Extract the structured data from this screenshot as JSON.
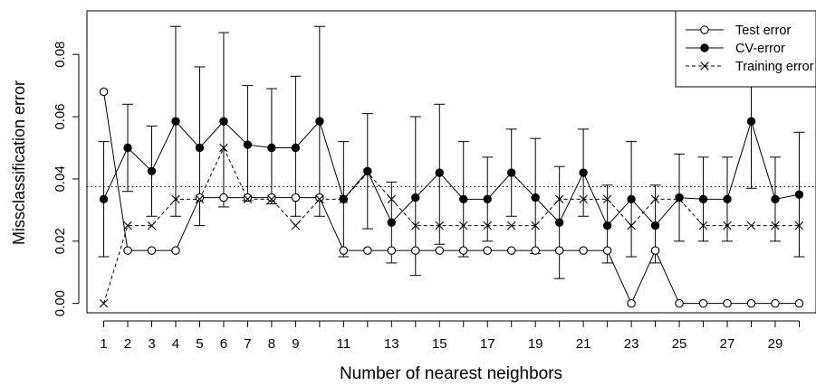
{
  "chart_data": {
    "type": "line",
    "title": "",
    "xlabel": "Number of nearest neighbors",
    "ylabel": "Missclassification error",
    "xlim": [
      0.3,
      30.7
    ],
    "ylim": [
      -0.003,
      0.094
    ],
    "x_ticks": [
      1,
      2,
      3,
      4,
      5,
      6,
      7,
      8,
      9,
      11,
      13,
      15,
      17,
      19,
      21,
      23,
      25,
      27,
      29
    ],
    "y_ticks": [
      0.0,
      0.02,
      0.04,
      0.06,
      0.08
    ],
    "y_tick_labels": [
      "0.00",
      "0.02",
      "0.04",
      "0.06",
      "0.08"
    ],
    "grid": false,
    "legend_position": "top-right",
    "reference_line": {
      "y": 0.0375,
      "style": "dotted"
    },
    "x": [
      1,
      2,
      3,
      4,
      5,
      6,
      7,
      8,
      9,
      10,
      11,
      12,
      13,
      14,
      15,
      16,
      17,
      18,
      19,
      20,
      21,
      22,
      23,
      24,
      25,
      26,
      27,
      28,
      29,
      30
    ],
    "series": [
      {
        "name": "Test error",
        "marker": "open-circle",
        "line": "solid",
        "values": [
          0.068,
          0.017,
          0.017,
          0.017,
          0.034,
          0.034,
          0.034,
          0.034,
          0.034,
          0.034,
          0.017,
          0.017,
          0.017,
          0.017,
          0.017,
          0.017,
          0.017,
          0.017,
          0.017,
          0.017,
          0.017,
          0.017,
          0.0,
          0.017,
          0.0,
          0.0,
          0.0,
          0.0,
          0.0,
          0.0
        ]
      },
      {
        "name": "CV-error",
        "marker": "filled-circle",
        "line": "solid",
        "values": [
          0.0335,
          0.05,
          0.0425,
          0.0585,
          0.05,
          0.0585,
          0.051,
          0.05,
          0.05,
          0.0585,
          0.0335,
          0.0425,
          0.026,
          0.034,
          0.042,
          0.0335,
          0.0335,
          0.042,
          0.034,
          0.026,
          0.042,
          0.025,
          0.0335,
          0.025,
          0.034,
          0.0335,
          0.0335,
          0.0585,
          0.0335,
          0.035
        ],
        "error_low": [
          0.015,
          0.036,
          0.028,
          0.028,
          0.025,
          0.031,
          0.033,
          0.032,
          0.028,
          0.028,
          0.015,
          0.024,
          0.013,
          0.009,
          0.019,
          0.015,
          0.02,
          0.028,
          0.016,
          0.008,
          0.028,
          0.013,
          0.015,
          0.013,
          0.02,
          0.02,
          0.02,
          0.037,
          0.02,
          0.015
        ],
        "error_high": [
          0.052,
          0.064,
          0.057,
          0.089,
          0.076,
          0.087,
          0.07,
          0.069,
          0.073,
          0.089,
          0.052,
          0.061,
          0.039,
          0.06,
          0.064,
          0.052,
          0.047,
          0.056,
          0.053,
          0.044,
          0.056,
          0.038,
          0.052,
          0.038,
          0.048,
          0.047,
          0.047,
          0.08,
          0.047,
          0.055
        ]
      },
      {
        "name": "Training error",
        "marker": "cross",
        "line": "dashed",
        "values": [
          0.0,
          0.025,
          0.025,
          0.0335,
          0.0335,
          0.05,
          0.0335,
          0.0335,
          0.025,
          0.0335,
          0.0335,
          0.042,
          0.0335,
          0.025,
          0.025,
          0.025,
          0.025,
          0.025,
          0.025,
          0.0335,
          0.0335,
          0.0335,
          0.025,
          0.0335,
          0.0335,
          0.025,
          0.025,
          0.025,
          0.025,
          0.025
        ]
      }
    ]
  }
}
